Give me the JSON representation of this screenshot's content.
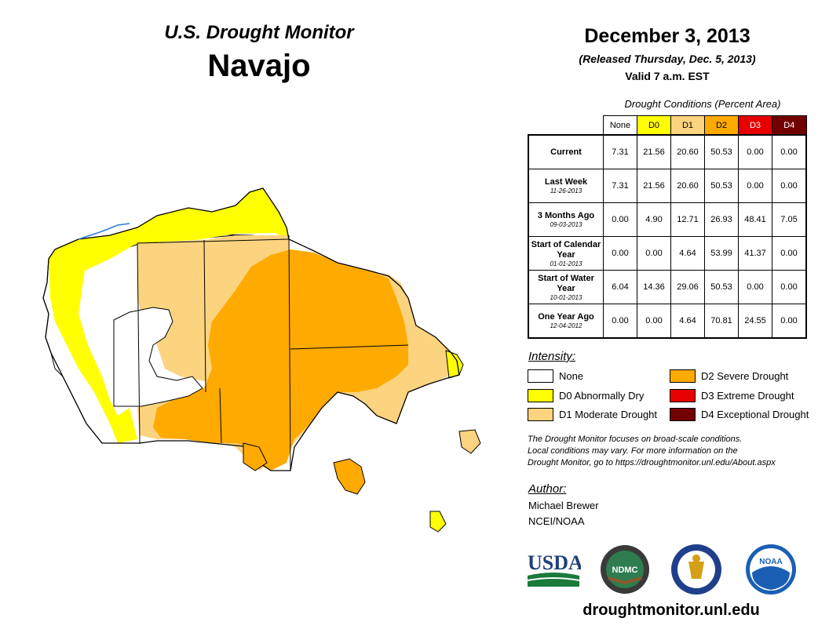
{
  "header": {
    "title": "U.S. Drought Monitor",
    "region": "Navajo",
    "date": "December 3, 2013",
    "released": "(Released Thursday, Dec. 5, 2013)",
    "valid": "Valid 7 a.m. EST"
  },
  "table": {
    "caption": "Drought Conditions (Percent Area)",
    "columns": [
      "None",
      "D0",
      "D1",
      "D2",
      "D3",
      "D4"
    ],
    "rows": [
      {
        "label": "Current",
        "sublabel": "",
        "values": [
          "7.31",
          "21.56",
          "20.60",
          "50.53",
          "0.00",
          "0.00"
        ]
      },
      {
        "label": "Last Week",
        "sublabel": "11-26-2013",
        "values": [
          "7.31",
          "21.56",
          "20.60",
          "50.53",
          "0.00",
          "0.00"
        ]
      },
      {
        "label": "3 Months Ago",
        "sublabel": "09-03-2013",
        "values": [
          "0.00",
          "4.90",
          "12.71",
          "26.93",
          "48.41",
          "7.05"
        ]
      },
      {
        "label": "Start of Calendar Year",
        "sublabel": "01-01-2013",
        "values": [
          "0.00",
          "0.00",
          "4.64",
          "53.99",
          "41.37",
          "0.00"
        ]
      },
      {
        "label": "Start of Water Year",
        "sublabel": "10-01-2013",
        "values": [
          "6.04",
          "14.36",
          "29.06",
          "50.53",
          "0.00",
          "0.00"
        ]
      },
      {
        "label": "One Year Ago",
        "sublabel": "12-04-2012",
        "values": [
          "0.00",
          "0.00",
          "4.64",
          "70.81",
          "24.55",
          "0.00"
        ]
      }
    ]
  },
  "legend": {
    "heading": "Intensity:",
    "items": [
      {
        "label": "None",
        "color": "#ffffff"
      },
      {
        "label": "D0 Abnormally Dry",
        "color": "#ffff00"
      },
      {
        "label": "D1 Moderate Drought",
        "color": "#fcd37f"
      },
      {
        "label": "D2 Severe Drought",
        "color": "#ffaa00"
      },
      {
        "label": "D3 Extreme Drought",
        "color": "#e60000"
      },
      {
        "label": "D4 Exceptional Drought",
        "color": "#730000"
      }
    ]
  },
  "note": {
    "line1": "The Drought Monitor focuses on broad-scale conditions.",
    "line2": "Local conditions may vary. For more information on the",
    "line3": "Drought Monitor, go to https://droughtmonitor.unl.edu/About.aspx"
  },
  "author": {
    "heading": "Author:",
    "name": "Michael Brewer",
    "org": "NCEI/NOAA"
  },
  "logos": {
    "usda": "USDA",
    "ndmc": "NDMC",
    "noaa": "NOAA"
  },
  "footer": {
    "url": "droughtmonitor.unl.edu"
  }
}
